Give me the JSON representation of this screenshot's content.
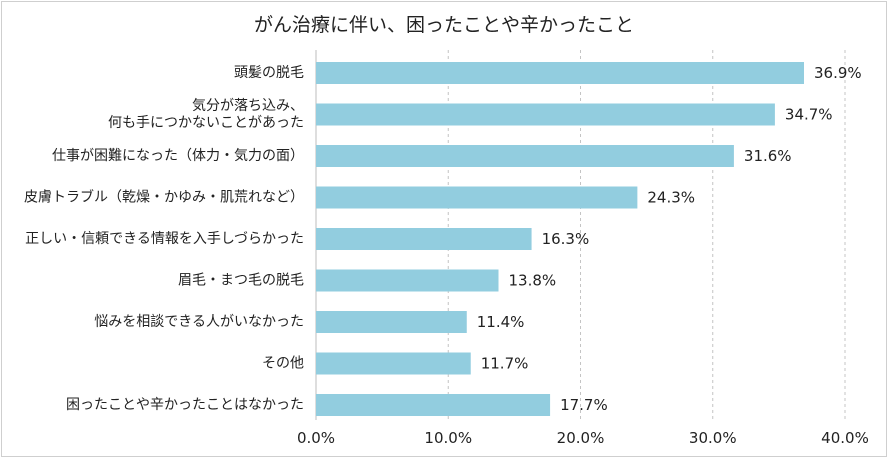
{
  "chart_data": {
    "type": "bar",
    "orientation": "horizontal",
    "title": "がん治療に伴い、困ったことや辛かったこと",
    "categories": [
      [
        "頭髪の脱毛"
      ],
      [
        "気分が落ち込み、",
        "何も手につかないことがあった"
      ],
      [
        "仕事が困難になった（体力・気力の面）"
      ],
      [
        "皮膚トラブル（乾燥・かゆみ・肌荒れなど）"
      ],
      [
        "正しい・信頼できる情報を入手しづらかった"
      ],
      [
        "眉毛・まつ毛の脱毛"
      ],
      [
        "悩みを相談できる人がいなかった"
      ],
      [
        "その他"
      ],
      [
        "困ったことや辛かったことはなかった"
      ]
    ],
    "values": [
      36.9,
      34.7,
      31.6,
      24.3,
      16.3,
      13.8,
      11.4,
      11.7,
      17.7
    ],
    "value_labels": [
      "36.9%",
      "34.7%",
      "31.6%",
      "24.3%",
      "16.3%",
      "13.8%",
      "11.4%",
      "11.7%",
      "17.7%"
    ],
    "xlim": [
      0,
      40
    ],
    "xticks": [
      0,
      10,
      20,
      30,
      40
    ],
    "xtick_labels": [
      "0.0%",
      "10.0%",
      "20.0%",
      "30.0%",
      "40.0%"
    ],
    "grid": "vertical-dashed",
    "bar_color": "#92cddf",
    "legend": "none"
  }
}
